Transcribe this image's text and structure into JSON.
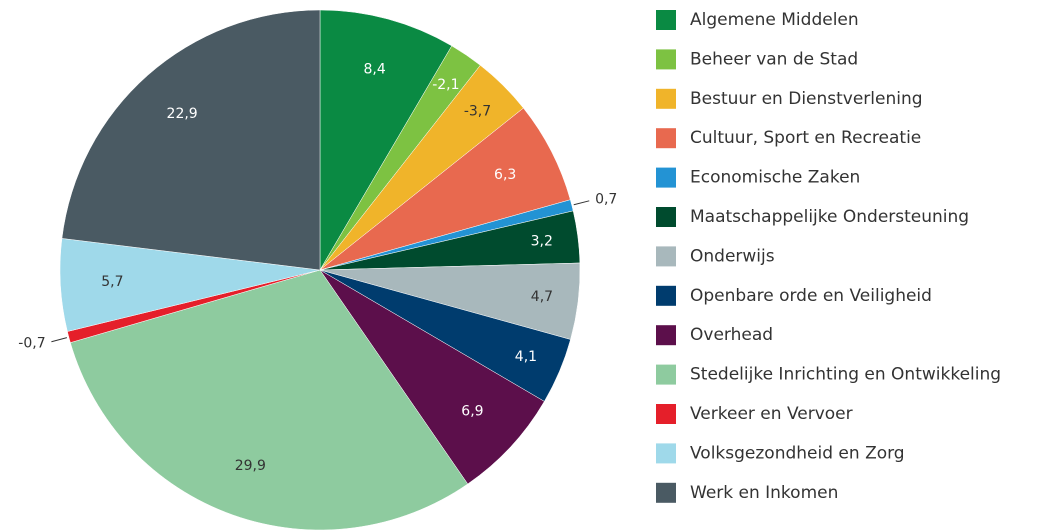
{
  "chart_data": {
    "type": "pie",
    "categories": [
      "Algemene Middelen",
      "Beheer van de Stad",
      "Bestuur en Dienstverlening",
      "Cultuur, Sport en Recreatie",
      "Economische Zaken",
      "Maatschappelijke Ondersteuning",
      "Onderwijs",
      "Openbare orde en Veiligheid",
      "Overhead",
      "Stedelijke Inrichting en Ontwikkeling",
      "Verkeer en Vervoer",
      "Volksgezondheid en Zorg",
      "Werk en Inkomen"
    ],
    "values": [
      8.4,
      -2.1,
      -3.7,
      6.3,
      0.7,
      3.2,
      4.7,
      4.1,
      6.9,
      29.9,
      -0.7,
      5.7,
      22.9
    ],
    "value_labels": [
      "8,4",
      "-2,1",
      "-3,7",
      "6,3",
      "0,7",
      "3,2",
      "4,7",
      "4,1",
      "6,9",
      "29,9",
      "-0,7",
      "5,7",
      "22,9"
    ],
    "colors": [
      "#0a8a43",
      "#7dc242",
      "#f0b42a",
      "#e8694f",
      "#2393d4",
      "#004b2e",
      "#a8b8bc",
      "#003c6e",
      "#5c0f4b",
      "#8ecb9f",
      "#e51f2a",
      "#9fd9ea",
      "#4a5a63"
    ],
    "legend": "right"
  }
}
